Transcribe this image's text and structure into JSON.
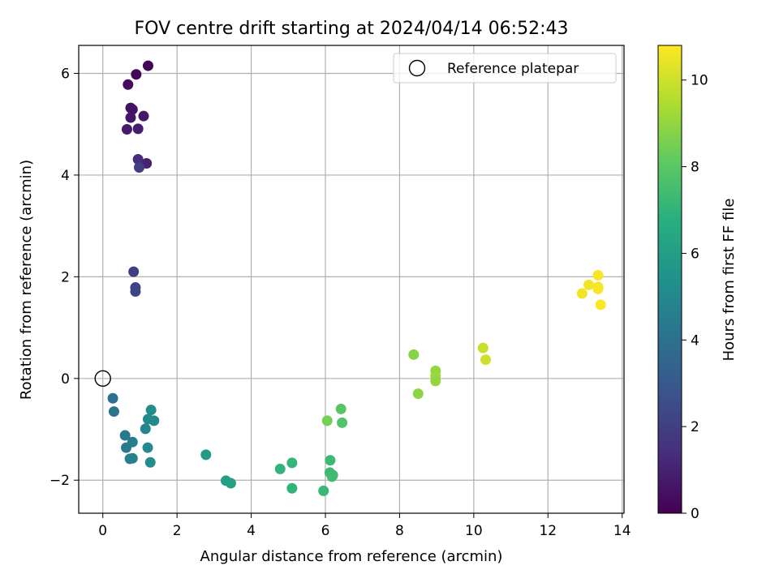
{
  "chart_data": {
    "type": "scatter",
    "title": "FOV centre drift starting at 2024/04/14 06:52:43",
    "xlabel": "Angular distance from reference (arcmin)",
    "ylabel": "Rotation from reference (arcmin)",
    "xlim": [
      -0.65,
      14.05
    ],
    "ylim": [
      -2.65,
      6.55
    ],
    "xticks": [
      0,
      2,
      4,
      6,
      8,
      10,
      12,
      14
    ],
    "yticks": [
      -2,
      0,
      2,
      4,
      6
    ],
    "grid": true,
    "legend": {
      "position": "top-right",
      "entries": [
        "Reference platepar"
      ]
    },
    "reference": {
      "x": 0,
      "y": 0,
      "marker": "open-circle"
    },
    "colorbar": {
      "label": "Hours from first FF file",
      "range": [
        0,
        10.8
      ],
      "ticks": [
        0,
        2,
        4,
        6,
        8,
        10
      ],
      "colormap": "viridis"
    },
    "points": [
      {
        "x": 1.22,
        "y": 6.15,
        "c": 0.1
      },
      {
        "x": 0.9,
        "y": 5.98,
        "c": 0.2
      },
      {
        "x": 0.68,
        "y": 5.78,
        "c": 0.3
      },
      {
        "x": 0.75,
        "y": 5.32,
        "c": 0.4
      },
      {
        "x": 0.8,
        "y": 5.29,
        "c": 0.5
      },
      {
        "x": 0.75,
        "y": 5.13,
        "c": 0.6
      },
      {
        "x": 1.1,
        "y": 5.16,
        "c": 0.7
      },
      {
        "x": 0.65,
        "y": 4.9,
        "c": 0.8
      },
      {
        "x": 0.95,
        "y": 4.91,
        "c": 0.9
      },
      {
        "x": 1.18,
        "y": 4.23,
        "c": 1.0
      },
      {
        "x": 0.95,
        "y": 4.31,
        "c": 1.4
      },
      {
        "x": 0.98,
        "y": 4.15,
        "c": 1.9
      },
      {
        "x": 0.83,
        "y": 2.1,
        "c": 2.0
      },
      {
        "x": 0.88,
        "y": 1.79,
        "c": 2.1
      },
      {
        "x": 0.88,
        "y": 1.71,
        "c": 2.2
      },
      {
        "x": 0.27,
        "y": -0.39,
        "c": 4.0
      },
      {
        "x": 0.3,
        "y": -0.65,
        "c": 4.1
      },
      {
        "x": 0.6,
        "y": -1.12,
        "c": 4.3
      },
      {
        "x": 0.8,
        "y": -1.25,
        "c": 4.5
      },
      {
        "x": 0.63,
        "y": -1.36,
        "c": 4.4
      },
      {
        "x": 0.73,
        "y": -1.58,
        "c": 4.6
      },
      {
        "x": 0.8,
        "y": -1.57,
        "c": 4.6
      },
      {
        "x": 1.15,
        "y": -0.99,
        "c": 4.9
      },
      {
        "x": 1.22,
        "y": -0.8,
        "c": 5.0
      },
      {
        "x": 1.3,
        "y": -0.62,
        "c": 5.2
      },
      {
        "x": 1.38,
        "y": -0.83,
        "c": 5.1
      },
      {
        "x": 1.21,
        "y": -1.36,
        "c": 5.0
      },
      {
        "x": 1.28,
        "y": -1.65,
        "c": 5.2
      },
      {
        "x": 2.78,
        "y": -1.5,
        "c": 5.8
      },
      {
        "x": 3.32,
        "y": -2.01,
        "c": 6.0
      },
      {
        "x": 3.45,
        "y": -2.06,
        "c": 6.1
      },
      {
        "x": 4.78,
        "y": -1.78,
        "c": 7.0
      },
      {
        "x": 5.1,
        "y": -1.66,
        "c": 7.1
      },
      {
        "x": 5.1,
        "y": -2.16,
        "c": 7.0
      },
      {
        "x": 5.95,
        "y": -2.21,
        "c": 7.2
      },
      {
        "x": 6.13,
        "y": -1.61,
        "c": 7.3
      },
      {
        "x": 6.12,
        "y": -1.85,
        "c": 7.3
      },
      {
        "x": 6.2,
        "y": -1.9,
        "c": 7.4
      },
      {
        "x": 6.18,
        "y": -1.93,
        "c": 7.4
      },
      {
        "x": 6.42,
        "y": -0.6,
        "c": 7.9
      },
      {
        "x": 6.45,
        "y": -0.87,
        "c": 7.8
      },
      {
        "x": 6.05,
        "y": -0.83,
        "c": 8.5
      },
      {
        "x": 8.38,
        "y": 0.47,
        "c": 8.8
      },
      {
        "x": 8.97,
        "y": 0.15,
        "c": 9.0
      },
      {
        "x": 8.97,
        "y": 0.05,
        "c": 9.1
      },
      {
        "x": 8.97,
        "y": -0.05,
        "c": 9.0
      },
      {
        "x": 8.5,
        "y": -0.3,
        "c": 8.9
      },
      {
        "x": 10.25,
        "y": 0.6,
        "c": 9.9
      },
      {
        "x": 10.32,
        "y": 0.37,
        "c": 10.0
      },
      {
        "x": 12.92,
        "y": 1.67,
        "c": 10.6
      },
      {
        "x": 13.1,
        "y": 1.84,
        "c": 10.6
      },
      {
        "x": 13.35,
        "y": 2.03,
        "c": 10.7
      },
      {
        "x": 13.35,
        "y": 1.8,
        "c": 10.7
      },
      {
        "x": 13.35,
        "y": 1.76,
        "c": 10.7
      },
      {
        "x": 13.42,
        "y": 1.45,
        "c": 10.8
      }
    ]
  }
}
